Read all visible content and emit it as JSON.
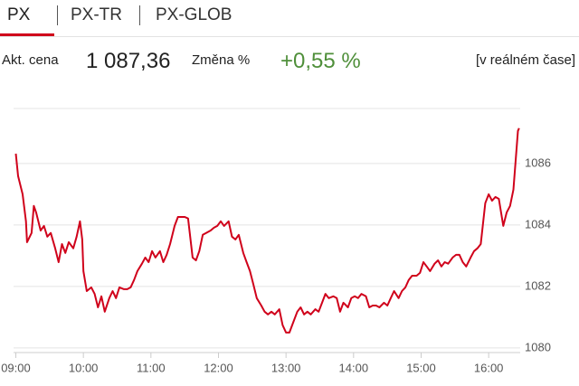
{
  "tabs": [
    "PX",
    "PX-TR",
    "PX-GLOB"
  ],
  "info": {
    "price_label": "Akt. cena",
    "price": "1 087,36",
    "change_label": "Změna %",
    "change": "+0,55 %",
    "realtime": "[v reálném čase]"
  },
  "chart_data": {
    "type": "line",
    "color": "#d0021b",
    "grid": true,
    "xlim": [
      538,
      988
    ],
    "ylim": [
      1079.85,
      1087.79
    ],
    "xticks": [
      {
        "value": 540,
        "label": "09:00"
      },
      {
        "value": 600,
        "label": "10:00"
      },
      {
        "value": 660,
        "label": "11:00"
      },
      {
        "value": 720,
        "label": "12:00"
      },
      {
        "value": 780,
        "label": "13:00"
      },
      {
        "value": 840,
        "label": "14:00"
      },
      {
        "value": 900,
        "label": "15:00"
      },
      {
        "value": 960,
        "label": "16:00"
      }
    ],
    "yticks": [
      1080,
      1082,
      1084,
      1086
    ],
    "x": [
      540,
      542,
      546,
      549,
      550,
      554,
      556,
      558,
      562,
      565,
      568,
      571,
      575,
      578,
      581,
      584,
      587,
      591,
      594,
      597,
      599,
      600,
      603,
      607,
      610,
      613,
      616,
      619,
      623,
      626,
      629,
      632,
      636,
      639,
      642,
      645,
      648,
      652,
      655,
      658,
      661,
      664,
      668,
      671,
      674,
      677,
      681,
      684,
      687,
      690,
      693,
      697,
      700,
      703,
      706,
      709,
      713,
      716,
      719,
      722,
      725,
      729,
      732,
      735,
      738,
      742,
      745,
      748,
      751,
      754,
      758,
      761,
      764,
      767,
      770,
      774,
      777,
      780,
      783,
      786,
      790,
      793,
      796,
      799,
      802,
      806,
      809,
      812,
      815,
      818,
      822,
      825,
      828,
      831,
      835,
      838,
      841,
      844,
      847,
      851,
      854,
      857,
      860,
      863,
      867,
      870,
      873,
      876,
      880,
      883,
      886,
      889,
      892,
      896,
      899,
      902,
      905,
      908,
      912,
      915,
      918,
      921,
      924,
      928,
      931,
      934,
      937,
      940,
      944,
      947,
      950,
      953,
      957,
      960,
      963,
      966,
      969,
      973,
      976,
      979,
      982,
      986,
      987
    ],
    "values": [
      1086.32,
      1085.59,
      1085.0,
      1084.12,
      1083.44,
      1083.74,
      1084.62,
      1084.41,
      1083.82,
      1083.97,
      1083.62,
      1083.74,
      1083.24,
      1082.79,
      1083.38,
      1083.09,
      1083.44,
      1083.24,
      1083.62,
      1084.12,
      1083.53,
      1082.5,
      1081.85,
      1081.97,
      1081.76,
      1081.32,
      1081.68,
      1081.18,
      1081.62,
      1081.85,
      1081.62,
      1081.97,
      1081.91,
      1081.91,
      1081.97,
      1082.21,
      1082.5,
      1082.74,
      1082.94,
      1082.79,
      1083.15,
      1082.94,
      1083.15,
      1082.79,
      1083.03,
      1083.38,
      1083.97,
      1084.26,
      1084.26,
      1084.26,
      1084.21,
      1082.94,
      1082.85,
      1083.15,
      1083.68,
      1083.74,
      1083.82,
      1083.91,
      1083.97,
      1084.12,
      1083.97,
      1084.12,
      1083.62,
      1083.53,
      1083.68,
      1083.09,
      1082.79,
      1082.5,
      1082.06,
      1081.62,
      1081.38,
      1081.18,
      1081.09,
      1081.18,
      1081.09,
      1081.26,
      1080.74,
      1080.5,
      1080.5,
      1080.79,
      1081.18,
      1081.32,
      1081.09,
      1081.18,
      1081.09,
      1081.26,
      1081.18,
      1081.47,
      1081.76,
      1081.62,
      1081.68,
      1081.62,
      1081.18,
      1081.47,
      1081.32,
      1081.62,
      1081.68,
      1081.62,
      1081.76,
      1081.68,
      1081.32,
      1081.38,
      1081.38,
      1081.32,
      1081.47,
      1081.38,
      1081.62,
      1081.85,
      1081.62,
      1081.85,
      1081.97,
      1082.21,
      1082.35,
      1082.35,
      1082.44,
      1082.79,
      1082.65,
      1082.5,
      1082.74,
      1082.85,
      1082.65,
      1082.79,
      1082.74,
      1082.94,
      1083.03,
      1083.03,
      1082.79,
      1082.65,
      1082.94,
      1083.15,
      1083.24,
      1083.38,
      1084.71,
      1085.0,
      1084.79,
      1084.91,
      1084.85,
      1083.97,
      1084.41,
      1084.62,
      1085.15,
      1087.06,
      1087.15
    ]
  }
}
